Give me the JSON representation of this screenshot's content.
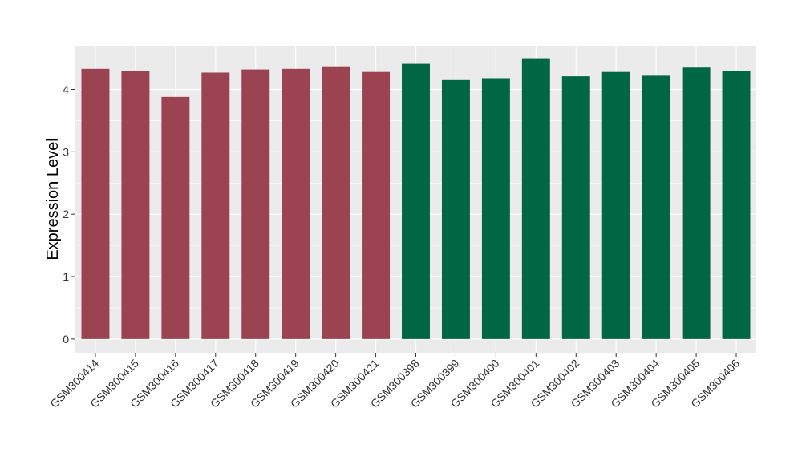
{
  "chart_data": {
    "type": "bar",
    "title": "",
    "xlabel": "",
    "ylabel": "Expression Level",
    "ylim": [
      -0.22,
      4.7
    ],
    "yticks": [
      0,
      1,
      2,
      3,
      4
    ],
    "grid": true,
    "legend": "none",
    "panel_background": "#ebebeb",
    "gridline_color": "#ffffff",
    "categories": [
      "GSM300414",
      "GSM300415",
      "GSM300416",
      "GSM300417",
      "GSM300418",
      "GSM300419",
      "GSM300420",
      "GSM300421",
      "GSM300398",
      "GSM300399",
      "GSM300400",
      "GSM300401",
      "GSM300402",
      "GSM300403",
      "GSM300404",
      "GSM300405",
      "GSM300406"
    ],
    "values": [
      4.33,
      4.29,
      3.88,
      4.27,
      4.32,
      4.33,
      4.37,
      4.28,
      4.41,
      4.15,
      4.18,
      4.5,
      4.21,
      4.28,
      4.22,
      4.35,
      4.3
    ],
    "bar_colors": [
      "#9b4350",
      "#9b4350",
      "#9b4350",
      "#9b4350",
      "#9b4350",
      "#9b4350",
      "#9b4350",
      "#9b4350",
      "#006644",
      "#006644",
      "#006644",
      "#006644",
      "#006644",
      "#006644",
      "#006644",
      "#006644",
      "#006644"
    ]
  }
}
